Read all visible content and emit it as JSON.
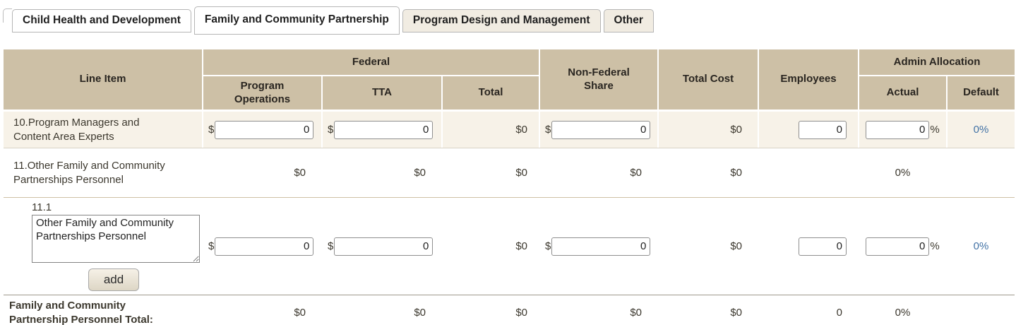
{
  "tabs": {
    "tab1": "Child Health and Development",
    "tab2": "Family and Community Partnership",
    "tab3": "Program Design and Management",
    "tab4": "Other"
  },
  "header": {
    "line_item": "Line Item",
    "federal": "Federal",
    "program_operations": "Program Operations",
    "tta": "TTA",
    "total": "Total",
    "non_federal_share": "Non-Federal Share",
    "total_cost": "Total Cost",
    "employees": "Employees",
    "admin_allocation": "Admin Allocation",
    "actual": "Actual",
    "default": "Default"
  },
  "rows": {
    "row10": {
      "label": "10.Program Managers and Content Area Experts",
      "currency": "$",
      "program_operations_value": "0",
      "tta_value": "0",
      "total": "$0",
      "non_federal_value": "0",
      "total_cost": "$0",
      "employees_value": "0",
      "actual_value": "0",
      "percent_sign": "%",
      "default_link": "0%"
    },
    "row11": {
      "label": "11.Other Family and Community Partnerships Personnel",
      "program_operations": "$0",
      "tta": "$0",
      "total": "$0",
      "non_federal": "$0",
      "total_cost": "$0",
      "actual": "0%"
    },
    "row11_1": {
      "number": "11.1",
      "name_value": "Other Family and Community Partnerships Personnel",
      "add_button": "add",
      "currency": "$",
      "program_operations_value": "0",
      "tta_value": "0",
      "total": "$0",
      "non_federal_value": "0",
      "total_cost": "$0",
      "employees_value": "0",
      "actual_value": "0",
      "percent_sign": "%",
      "default_link": "0%"
    },
    "total_row": {
      "label": "Family and Community Partnership Personnel Total:",
      "program_operations": "$0",
      "tta": "$0",
      "total": "$0",
      "non_federal": "$0",
      "total_cost": "$0",
      "employees": "0",
      "actual": "0%"
    }
  },
  "colors": {
    "header_bg": "#cdc0a6",
    "row_highlight_bg": "#f7f2e8",
    "link_blue": "#4373a6"
  }
}
